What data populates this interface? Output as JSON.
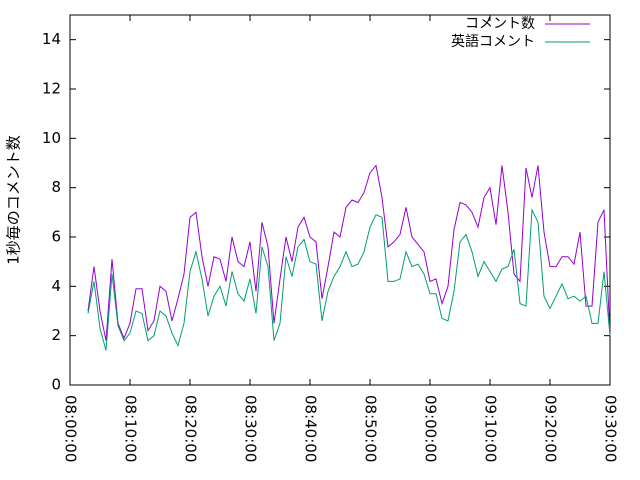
{
  "chart_data": {
    "type": "line",
    "ylabel": "1秒毎のコメント数",
    "x": [
      "08:03:00",
      "08:04:00",
      "08:05:00",
      "08:06:00",
      "08:07:00",
      "08:08:00",
      "08:09:00",
      "08:10:00",
      "08:11:00",
      "08:12:00",
      "08:13:00",
      "08:14:00",
      "08:15:00",
      "08:16:00",
      "08:17:00",
      "08:18:00",
      "08:19:00",
      "08:20:00",
      "08:21:00",
      "08:22:00",
      "08:23:00",
      "08:24:00",
      "08:25:00",
      "08:26:00",
      "08:27:00",
      "08:28:00",
      "08:29:00",
      "08:30:00",
      "08:31:00",
      "08:32:00",
      "08:33:00",
      "08:34:00",
      "08:35:00",
      "08:36:00",
      "08:37:00",
      "08:38:00",
      "08:39:00",
      "08:40:00",
      "08:41:00",
      "08:42:00",
      "08:43:00",
      "08:44:00",
      "08:45:00",
      "08:46:00",
      "08:47:00",
      "08:48:00",
      "08:49:00",
      "08:50:00",
      "08:51:00",
      "08:52:00",
      "08:53:00",
      "08:54:00",
      "08:55:00",
      "08:56:00",
      "08:57:00",
      "08:58:00",
      "08:59:00",
      "09:00:00",
      "09:01:00",
      "09:02:00",
      "09:03:00",
      "09:04:00",
      "09:05:00",
      "09:06:00",
      "09:07:00",
      "09:08:00",
      "09:09:00",
      "09:10:00",
      "09:11:00",
      "09:12:00",
      "09:13:00",
      "09:14:00",
      "09:15:00",
      "09:16:00",
      "09:17:00",
      "09:18:00",
      "09:19:00",
      "09:20:00",
      "09:21:00",
      "09:22:00",
      "09:23:00",
      "09:24:00",
      "09:25:00",
      "09:26:00",
      "09:27:00",
      "09:28:00",
      "09:29:00",
      "09:30:00"
    ],
    "series": [
      {
        "name": "コメント数",
        "color": "#9400d3",
        "values": [
          3.0,
          4.8,
          3.0,
          1.8,
          5.1,
          2.5,
          1.9,
          2.5,
          3.9,
          3.9,
          2.2,
          2.6,
          4.0,
          3.8,
          2.6,
          3.5,
          4.5,
          6.8,
          7.0,
          5.2,
          4.0,
          5.2,
          5.1,
          4.2,
          6.0,
          5.0,
          4.8,
          5.8,
          3.8,
          6.6,
          5.6,
          2.5,
          4.3,
          6.0,
          5.0,
          6.4,
          6.8,
          6.0,
          5.8,
          3.5,
          4.8,
          6.2,
          6.0,
          7.2,
          7.5,
          7.4,
          7.8,
          8.6,
          8.9,
          7.6,
          5.6,
          5.8,
          6.1,
          7.2,
          6.0,
          5.7,
          5.4,
          4.2,
          4.3,
          3.3,
          4.0,
          6.3,
          7.4,
          7.3,
          7.0,
          6.4,
          7.6,
          8.0,
          6.5,
          8.9,
          7.0,
          4.5,
          4.2,
          8.8,
          7.6,
          8.9,
          6.2,
          4.8,
          4.8,
          5.2,
          5.2,
          4.9,
          6.2,
          3.2,
          3.2,
          6.6,
          7.1,
          2.0
        ]
      },
      {
        "name": "英語コメント",
        "color": "#009e73",
        "values": [
          2.9,
          4.2,
          2.3,
          1.4,
          4.5,
          2.4,
          1.8,
          2.1,
          3.0,
          2.9,
          1.8,
          2.0,
          3.0,
          2.8,
          2.1,
          1.6,
          2.5,
          4.6,
          5.4,
          4.3,
          2.8,
          3.6,
          4.0,
          3.2,
          4.6,
          3.7,
          3.4,
          4.3,
          2.9,
          5.6,
          4.8,
          1.8,
          2.5,
          5.2,
          4.4,
          5.6,
          5.9,
          5.0,
          4.9,
          2.6,
          3.8,
          4.4,
          4.8,
          5.4,
          4.8,
          4.9,
          5.4,
          6.4,
          6.9,
          6.8,
          4.2,
          4.2,
          4.3,
          5.4,
          4.8,
          4.9,
          4.5,
          3.7,
          3.7,
          2.7,
          2.6,
          3.8,
          5.8,
          6.1,
          5.4,
          4.4,
          5.0,
          4.6,
          4.2,
          4.7,
          4.8,
          5.5,
          3.3,
          3.2,
          7.1,
          6.6,
          3.6,
          3.1,
          3.6,
          4.1,
          3.5,
          3.6,
          3.4,
          3.6,
          2.5,
          2.5,
          4.6,
          2.0
        ]
      }
    ],
    "xlim": [
      "08:00:00",
      "09:30:00"
    ],
    "xticks": [
      "08:00:00",
      "08:10:00",
      "08:20:00",
      "08:30:00",
      "08:40:00",
      "08:50:00",
      "09:00:00",
      "09:10:00",
      "09:20:00",
      "09:30:00"
    ],
    "ylim": [
      0,
      15
    ],
    "yticks": [
      0,
      2,
      4,
      6,
      8,
      10,
      12,
      14
    ],
    "legend": "top-right"
  }
}
